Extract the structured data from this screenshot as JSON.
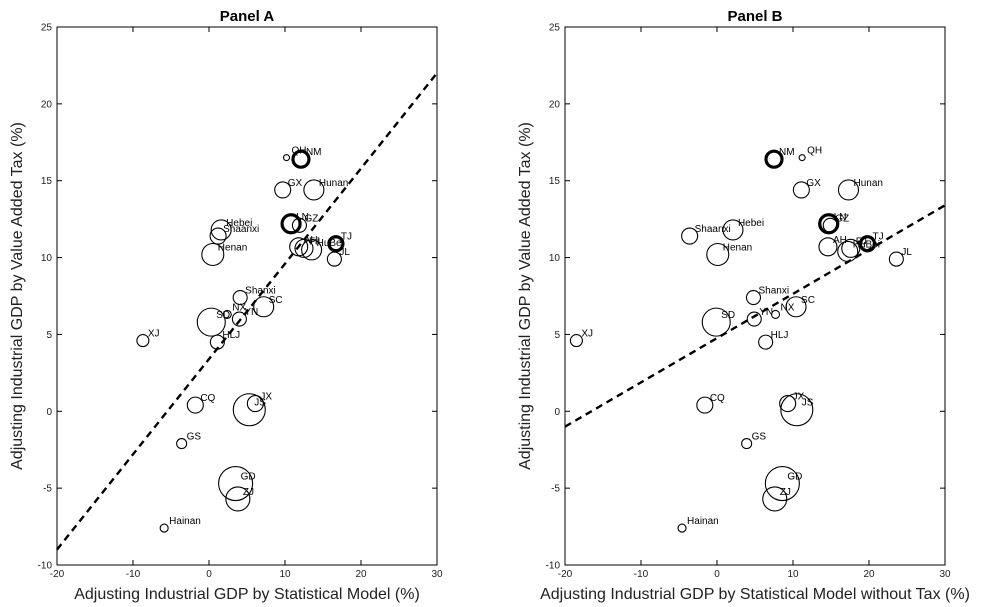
{
  "chart_data": [
    {
      "type": "scatter",
      "title": "Panel A",
      "xlabel": "Adjusting Industrial GDP by Statistical Model (%)",
      "ylabel": "Adjusting Industrial GDP by Value Added Tax (%)",
      "xlim": [
        -20,
        30
      ],
      "ylim": [
        -10,
        25
      ],
      "xticks": [
        "-20",
        "-10",
        "0",
        "10",
        "20",
        "30"
      ],
      "yticks": [
        "-10",
        "-5",
        "0",
        "5",
        "10",
        "15",
        "20",
        "25"
      ],
      "fit_line": {
        "x": [
          -20,
          30
        ],
        "y": [
          -9,
          22
        ]
      },
      "points": [
        {
          "label": "QH",
          "x": 10.2,
          "y": 16.5,
          "r": 3,
          "thick": false
        },
        {
          "label": "NM",
          "x": 12.1,
          "y": 16.4,
          "r": 8,
          "thick": true
        },
        {
          "label": "GX",
          "x": 9.7,
          "y": 14.4,
          "r": 8,
          "thick": false
        },
        {
          "label": "Hunan",
          "x": 13.8,
          "y": 14.4,
          "r": 10,
          "thick": false
        },
        {
          "label": "Hebei",
          "x": 1.6,
          "y": 11.8,
          "r": 10,
          "thick": false
        },
        {
          "label": "Shaanxi",
          "x": 1.2,
          "y": 11.4,
          "r": 8,
          "thick": false
        },
        {
          "label": "LN",
          "x": 10.8,
          "y": 12.2,
          "r": 9,
          "thick": true
        },
        {
          "label": "GZ",
          "x": 11.9,
          "y": 12.1,
          "r": 7,
          "thick": false
        },
        {
          "label": "Henan",
          "x": 0.5,
          "y": 10.2,
          "r": 11,
          "thick": false
        },
        {
          "label": "AH",
          "x": 11.8,
          "y": 10.7,
          "r": 9,
          "thick": false
        },
        {
          "label": "HuBei",
          "x": 13.5,
          "y": 10.5,
          "r": 10,
          "thick": false
        },
        {
          "label": "FJ",
          "x": 12.5,
          "y": 10.6,
          "r": 9,
          "thick": false
        },
        {
          "label": "TJ",
          "x": 16.7,
          "y": 10.9,
          "r": 7,
          "thick": true
        },
        {
          "label": "JL",
          "x": 16.5,
          "y": 9.9,
          "r": 7,
          "thick": false
        },
        {
          "label": "Shanxi",
          "x": 4.1,
          "y": 7.4,
          "r": 7,
          "thick": false
        },
        {
          "label": "SC",
          "x": 7.2,
          "y": 6.8,
          "r": 10,
          "thick": false
        },
        {
          "label": "NX",
          "x": 2.4,
          "y": 6.3,
          "r": 4,
          "thick": false
        },
        {
          "label": "YN",
          "x": 4.0,
          "y": 6.0,
          "r": 7,
          "thick": false
        },
        {
          "label": "SD",
          "x": 0.3,
          "y": 5.8,
          "r": 14,
          "thick": false
        },
        {
          "label": "XJ",
          "x": -8.7,
          "y": 4.6,
          "r": 6,
          "thick": false
        },
        {
          "label": "HLJ",
          "x": 1.1,
          "y": 4.5,
          "r": 7,
          "thick": false
        },
        {
          "label": "JX",
          "x": 6.1,
          "y": 0.5,
          "r": 8,
          "thick": false
        },
        {
          "label": "JS",
          "x": 5.3,
          "y": 0.1,
          "r": 16,
          "thick": false
        },
        {
          "label": "CQ",
          "x": -1.8,
          "y": 0.4,
          "r": 8,
          "thick": false
        },
        {
          "label": "GS",
          "x": -3.6,
          "y": -2.1,
          "r": 5,
          "thick": false
        },
        {
          "label": "GD",
          "x": 3.5,
          "y": -4.7,
          "r": 17,
          "thick": false
        },
        {
          "label": "ZJ",
          "x": 3.8,
          "y": -5.7,
          "r": 12,
          "thick": false
        },
        {
          "label": "Hainan",
          "x": -5.9,
          "y": -7.6,
          "r": 4,
          "thick": false
        }
      ]
    },
    {
      "type": "scatter",
      "title": "Panel B",
      "xlabel": "Adjusting Industrial GDP by Statistical Model without Tax (%)",
      "ylabel": "Adjusting Industrial GDP by Value Added Tax (%)",
      "xlim": [
        -20,
        30
      ],
      "ylim": [
        -10,
        25
      ],
      "xticks": [
        "-20",
        "-10",
        "0",
        "10",
        "20",
        "30"
      ],
      "yticks": [
        "-10",
        "-5",
        "0",
        "5",
        "10",
        "15",
        "20",
        "25"
      ],
      "fit_line": {
        "x": [
          -20,
          30
        ],
        "y": [
          -1,
          13.4
        ]
      },
      "points": [
        {
          "label": "QH",
          "x": 11.2,
          "y": 16.5,
          "r": 3,
          "thick": false
        },
        {
          "label": "NM",
          "x": 7.5,
          "y": 16.4,
          "r": 8,
          "thick": true
        },
        {
          "label": "GX",
          "x": 11.1,
          "y": 14.4,
          "r": 8,
          "thick": false
        },
        {
          "label": "Hunan",
          "x": 17.3,
          "y": 14.4,
          "r": 10,
          "thick": false
        },
        {
          "label": "Shaanxi",
          "x": -3.6,
          "y": 11.4,
          "r": 8,
          "thick": false
        },
        {
          "label": "Hebei",
          "x": 2.1,
          "y": 11.8,
          "r": 10,
          "thick": false
        },
        {
          "label": "LN",
          "x": 14.7,
          "y": 12.2,
          "r": 9,
          "thick": true
        },
        {
          "label": "GZ",
          "x": 14.9,
          "y": 12.1,
          "r": 7,
          "thick": false
        },
        {
          "label": "Henan",
          "x": 0.1,
          "y": 10.2,
          "r": 11,
          "thick": false
        },
        {
          "label": "AH",
          "x": 14.6,
          "y": 10.7,
          "r": 9,
          "thick": false
        },
        {
          "label": "FJ",
          "x": 17.6,
          "y": 10.6,
          "r": 9,
          "thick": false
        },
        {
          "label": "HuBei",
          "x": 17.2,
          "y": 10.4,
          "r": 10,
          "thick": false
        },
        {
          "label": "TJ",
          "x": 19.8,
          "y": 10.9,
          "r": 7,
          "thick": true
        },
        {
          "label": "JL",
          "x": 23.6,
          "y": 9.9,
          "r": 7,
          "thick": false
        },
        {
          "label": "Shanxi",
          "x": 4.8,
          "y": 7.4,
          "r": 7,
          "thick": false
        },
        {
          "label": "SC",
          "x": 10.4,
          "y": 6.8,
          "r": 10,
          "thick": false
        },
        {
          "label": "NX",
          "x": 7.7,
          "y": 6.3,
          "r": 4,
          "thick": false
        },
        {
          "label": "YN",
          "x": 4.9,
          "y": 6.0,
          "r": 7,
          "thick": false
        },
        {
          "label": "SD",
          "x": -0.1,
          "y": 5.8,
          "r": 14,
          "thick": false
        },
        {
          "label": "XJ",
          "x": -18.5,
          "y": 4.6,
          "r": 6,
          "thick": false
        },
        {
          "label": "HLJ",
          "x": 6.4,
          "y": 4.5,
          "r": 7,
          "thick": false
        },
        {
          "label": "JX",
          "x": 9.3,
          "y": 0.5,
          "r": 8,
          "thick": false
        },
        {
          "label": "JS",
          "x": 10.5,
          "y": 0.1,
          "r": 16,
          "thick": false
        },
        {
          "label": "CQ",
          "x": -1.6,
          "y": 0.4,
          "r": 8,
          "thick": false
        },
        {
          "label": "GS",
          "x": 3.9,
          "y": -2.1,
          "r": 5,
          "thick": false
        },
        {
          "label": "GD",
          "x": 8.6,
          "y": -4.7,
          "r": 17,
          "thick": false
        },
        {
          "label": "ZJ",
          "x": 7.6,
          "y": -5.7,
          "r": 12,
          "thick": false
        },
        {
          "label": "Hainan",
          "x": -4.6,
          "y": -7.6,
          "r": 4,
          "thick": false
        }
      ]
    }
  ]
}
